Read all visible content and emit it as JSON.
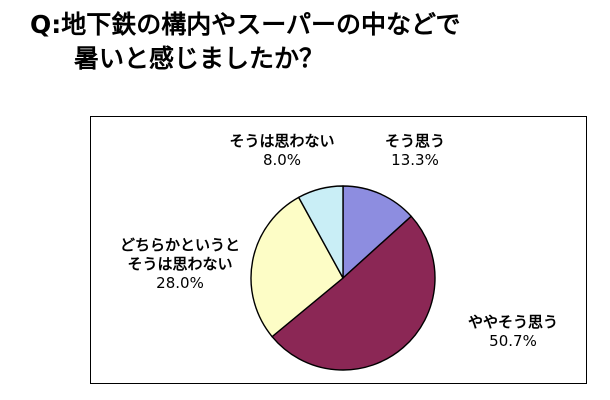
{
  "question": {
    "line1": "Q:地下鉄の構内やスーパーの中などで",
    "line2": "暑いと感じましたか？"
  },
  "chart_data": {
    "type": "pie",
    "title": "Q:地下鉄の構内やスーパーの中などで暑いと感じましたか？",
    "start_angle_deg": 0,
    "direction": "clockwise",
    "slices": [
      {
        "label_lines": [
          "そう思う"
        ],
        "value": 13.3,
        "pct_text": "13.3%",
        "color": "#8d8de0"
      },
      {
        "label_lines": [
          "ややそう思う"
        ],
        "value": 50.7,
        "pct_text": "50.7%",
        "color": "#8b2755"
      },
      {
        "label_lines": [
          "どちらかというと",
          "そうは思わない"
        ],
        "value": 28.0,
        "pct_text": "28.0%",
        "color": "#fdfdc6"
      },
      {
        "label_lines": [
          "そうは思わない"
        ],
        "value": 8.0,
        "pct_text": "8.0%",
        "color": "#c9eef6"
      }
    ],
    "outline_color": "#000000"
  }
}
